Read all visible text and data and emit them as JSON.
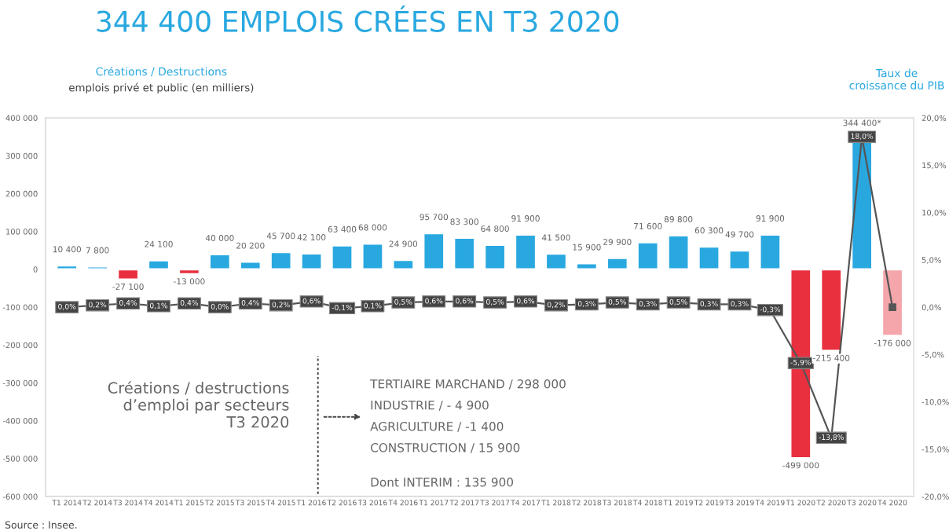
{
  "chart_data": {
    "type": "bar",
    "title": "344 400 EMPLOIS CRÉES EN T3 2020",
    "ylabel": "Créations / Destructions",
    "subtitle": "emplois privé et public (en milliers)",
    "y2label": "Taux de croissance du PIB",
    "categories": [
      "T1 2014",
      "T2 2014",
      "T3 2014",
      "T4 2014",
      "T1 2015",
      "T2 2015",
      "T3 2015",
      "T4 2015",
      "T1 2016",
      "T2 2016",
      "T3 2016",
      "T4 2016",
      "T1 2017",
      "T2 2017",
      "T3 2017",
      "T4 2017",
      "T1 2018",
      "T2 2018",
      "T3 2018",
      "T4 2018",
      "T1 2019",
      "T2 2019",
      "T3 2019",
      "T4 2019",
      "T1 2020",
      "T2 2020",
      "T3 2020",
      "T4 2020"
    ],
    "series": [
      {
        "colors": [
          "#29a8e0",
          "#29a8e0",
          "#e8303f",
          "#29a8e0",
          "#e8303f",
          "#29a8e0",
          "#29a8e0",
          "#29a8e0",
          "#29a8e0",
          "#29a8e0",
          "#29a8e0",
          "#29a8e0",
          "#29a8e0",
          "#29a8e0",
          "#29a8e0",
          "#29a8e0",
          "#29a8e0",
          "#29a8e0",
          "#29a8e0",
          "#29a8e0",
          "#29a8e0",
          "#29a8e0",
          "#29a8e0",
          "#29a8e0",
          "#e8303f",
          "#e8303f",
          "#29a8e0",
          "#f4a6ab"
        ],
        "values": [
          10400,
          7800,
          -27100,
          24100,
          -13000,
          40000,
          20200,
          45700,
          42100,
          63400,
          68000,
          24900,
          95700,
          83300,
          64800,
          91900,
          41500,
          15900,
          29900,
          71600,
          89800,
          60300,
          49700,
          91900,
          -499000,
          -215400,
          344400,
          -176000
        ],
        "value_labels": [
          "10 400",
          "7 800",
          "-27 100",
          "24 100",
          "-13 000",
          "40 000",
          "20 200",
          "45 700",
          "42 100",
          "63 400",
          "68 000",
          "24 900",
          "95 700",
          "83 300",
          "64 800",
          "91 900",
          "41 500",
          "15 900",
          "29 900",
          "71 600",
          "89 800",
          "60 300",
          "49 700",
          "91 900",
          "-499 000",
          "-215 400",
          "344 400*",
          "-176 000"
        ]
      },
      {
        "type": "line",
        "axis": "y2",
        "color": "#555555",
        "marker": "square",
        "values": [
          0.0,
          0.2,
          0.4,
          0.1,
          0.4,
          0.0,
          0.4,
          0.2,
          0.6,
          -0.1,
          0.1,
          0.5,
          0.6,
          0.6,
          0.5,
          0.6,
          0.2,
          0.3,
          0.5,
          0.3,
          0.5,
          0.3,
          0.3,
          -0.3,
          -5.9,
          -13.8,
          18.0,
          0.0
        ],
        "value_labels": [
          "0,0%",
          "0,2%",
          "0,4%",
          "0,1%",
          "0,4%",
          "0,0%",
          "0,4%",
          "0,2%",
          "0,6%",
          "-0,1%",
          "0,1%",
          "0,5%",
          "0,6%",
          "0,6%",
          "0,5%",
          "0,6%",
          "0,2%",
          "0,3%",
          "0,5%",
          "0,3%",
          "0,5%",
          "0,3%",
          "0,3%",
          "-0,3%",
          "-5,9%",
          "-13,8%",
          "18,0%",
          null
        ]
      }
    ],
    "ylim": [
      -600000,
      400000
    ],
    "yticks": [
      {
        "value": -600000,
        "label": "-600 000"
      },
      {
        "value": -500000,
        "label": "-500 000"
      },
      {
        "value": -400000,
        "label": "-400 000"
      },
      {
        "value": -300000,
        "label": "-300 000"
      },
      {
        "value": -200000,
        "label": "-200 000"
      },
      {
        "value": -100000,
        "label": "-100 000"
      },
      0,
      {
        "value": 100000,
        "label": "100 000"
      },
      {
        "value": 200000,
        "label": "200 000"
      },
      {
        "value": 300000,
        "label": "300 000"
      },
      {
        "value": 400000,
        "label": "400 000"
      }
    ],
    "y2lim": [
      -20,
      20
    ],
    "y2ticks": [
      {
        "value": -20,
        "label": "-20,0%"
      },
      {
        "value": -15,
        "label": "-15,0%"
      },
      {
        "value": -10,
        "label": "-10,0%"
      },
      {
        "value": -5,
        "label": "-5,0%"
      },
      {
        "value": 0,
        "label": "0,0%"
      },
      {
        "value": 5,
        "label": "5,0%"
      },
      {
        "value": 10,
        "label": "10,0%"
      },
      {
        "value": 15,
        "label": "15,0%"
      },
      {
        "value": 20,
        "label": "20,0%"
      }
    ],
    "grid": false,
    "annotations": [
      "Créations / destructions\nd’emploi par secteurs\nT3 2020",
      "TERTIAIRE MARCHAND / 298 000",
      "INDUSTRIE / - 4 900",
      "AGRICULTURE / -1 400",
      "CONSTRUCTION / 15 900",
      "Dont INTERIM : 135 900",
      "Source : Insee."
    ]
  }
}
